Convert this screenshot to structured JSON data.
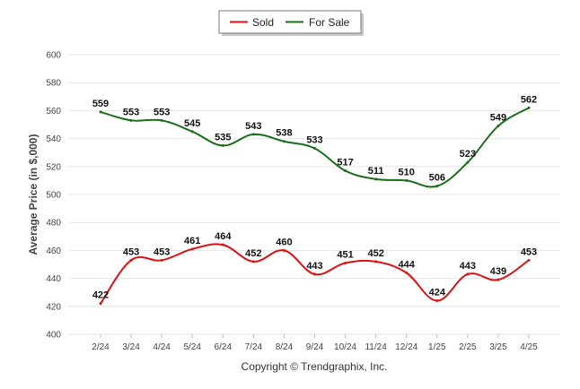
{
  "chart_data": {
    "type": "line",
    "title": "",
    "xlabel": "",
    "ylabel": "Average Price (in $,000)",
    "ylim": [
      400,
      600
    ],
    "yticks": [
      400,
      420,
      440,
      460,
      480,
      500,
      520,
      540,
      560,
      580,
      600
    ],
    "categories": [
      "2/24",
      "3/24",
      "4/24",
      "5/24",
      "6/24",
      "7/24",
      "8/24",
      "9/24",
      "10/24",
      "11/24",
      "12/24",
      "1/25",
      "2/25",
      "3/25",
      "4/25"
    ],
    "series": [
      {
        "name": "Sold",
        "color": "#dd1111",
        "values": [
          422,
          453,
          453,
          461,
          464,
          452,
          460,
          443,
          451,
          452,
          444,
          424,
          443,
          439,
          453
        ]
      },
      {
        "name": "For Sale",
        "color": "#1a6e1a",
        "values": [
          559,
          553,
          553,
          545,
          535,
          543,
          538,
          533,
          517,
          511,
          510,
          506,
          523,
          549,
          562
        ]
      }
    ],
    "grid": "horizontal",
    "legend_position": "top-center",
    "copyright": "Copyright © Trendgraphix, Inc."
  }
}
